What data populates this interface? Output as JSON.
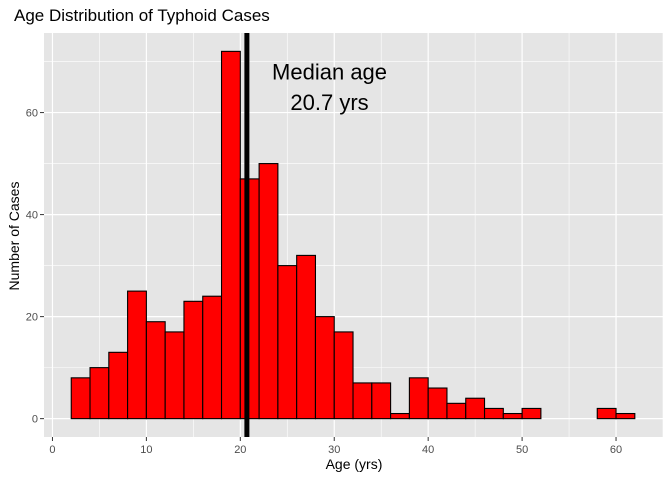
{
  "chart_data": {
    "type": "bar",
    "title": "Age Distribution of Typhoid Cases",
    "xlabel": "Age (yrs)",
    "ylabel": "Number of Cases",
    "xlim": [
      -0.9,
      65.0
    ],
    "ylim": [
      -3.6,
      75.6
    ],
    "xticks": [
      0,
      10,
      20,
      30,
      40,
      50,
      60
    ],
    "yticks": [
      0,
      20,
      40,
      60
    ],
    "grid": true,
    "bin_width": 2,
    "bins": [
      {
        "start": 2,
        "end": 4,
        "count": 8
      },
      {
        "start": 4,
        "end": 6,
        "count": 10
      },
      {
        "start": 6,
        "end": 8,
        "count": 13
      },
      {
        "start": 8,
        "end": 10,
        "count": 25
      },
      {
        "start": 10,
        "end": 12,
        "count": 19
      },
      {
        "start": 12,
        "end": 14,
        "count": 17
      },
      {
        "start": 14,
        "end": 16,
        "count": 23
      },
      {
        "start": 16,
        "end": 18,
        "count": 24
      },
      {
        "start": 18,
        "end": 20,
        "count": 72
      },
      {
        "start": 20,
        "end": 22,
        "count": 47
      },
      {
        "start": 22,
        "end": 24,
        "count": 50
      },
      {
        "start": 24,
        "end": 26,
        "count": 30
      },
      {
        "start": 26,
        "end": 28,
        "count": 32
      },
      {
        "start": 28,
        "end": 30,
        "count": 20
      },
      {
        "start": 30,
        "end": 32,
        "count": 17
      },
      {
        "start": 32,
        "end": 34,
        "count": 7
      },
      {
        "start": 34,
        "end": 36,
        "count": 7
      },
      {
        "start": 36,
        "end": 38,
        "count": 1
      },
      {
        "start": 38,
        "end": 40,
        "count": 8
      },
      {
        "start": 40,
        "end": 42,
        "count": 6
      },
      {
        "start": 42,
        "end": 44,
        "count": 3
      },
      {
        "start": 44,
        "end": 46,
        "count": 4
      },
      {
        "start": 46,
        "end": 48,
        "count": 2
      },
      {
        "start": 48,
        "end": 50,
        "count": 1
      },
      {
        "start": 50,
        "end": 52,
        "count": 2
      },
      {
        "start": 52,
        "end": 54,
        "count": 0
      },
      {
        "start": 54,
        "end": 56,
        "count": 0
      },
      {
        "start": 56,
        "end": 58,
        "count": 0
      },
      {
        "start": 58,
        "end": 60,
        "count": 2
      },
      {
        "start": 60,
        "end": 62,
        "count": 1
      }
    ],
    "vline": {
      "x": 20.7
    },
    "annotation": {
      "line1": "Median age",
      "line2": "20.7 yrs",
      "x": 29.5,
      "y1": 66.5,
      "y2": 60.5
    },
    "colors": {
      "panel_background": "#e5e5e5",
      "grid": "#ffffff",
      "bar_fill": "#ff0000",
      "bar_outline": "#000000",
      "vline": "#000000"
    }
  }
}
